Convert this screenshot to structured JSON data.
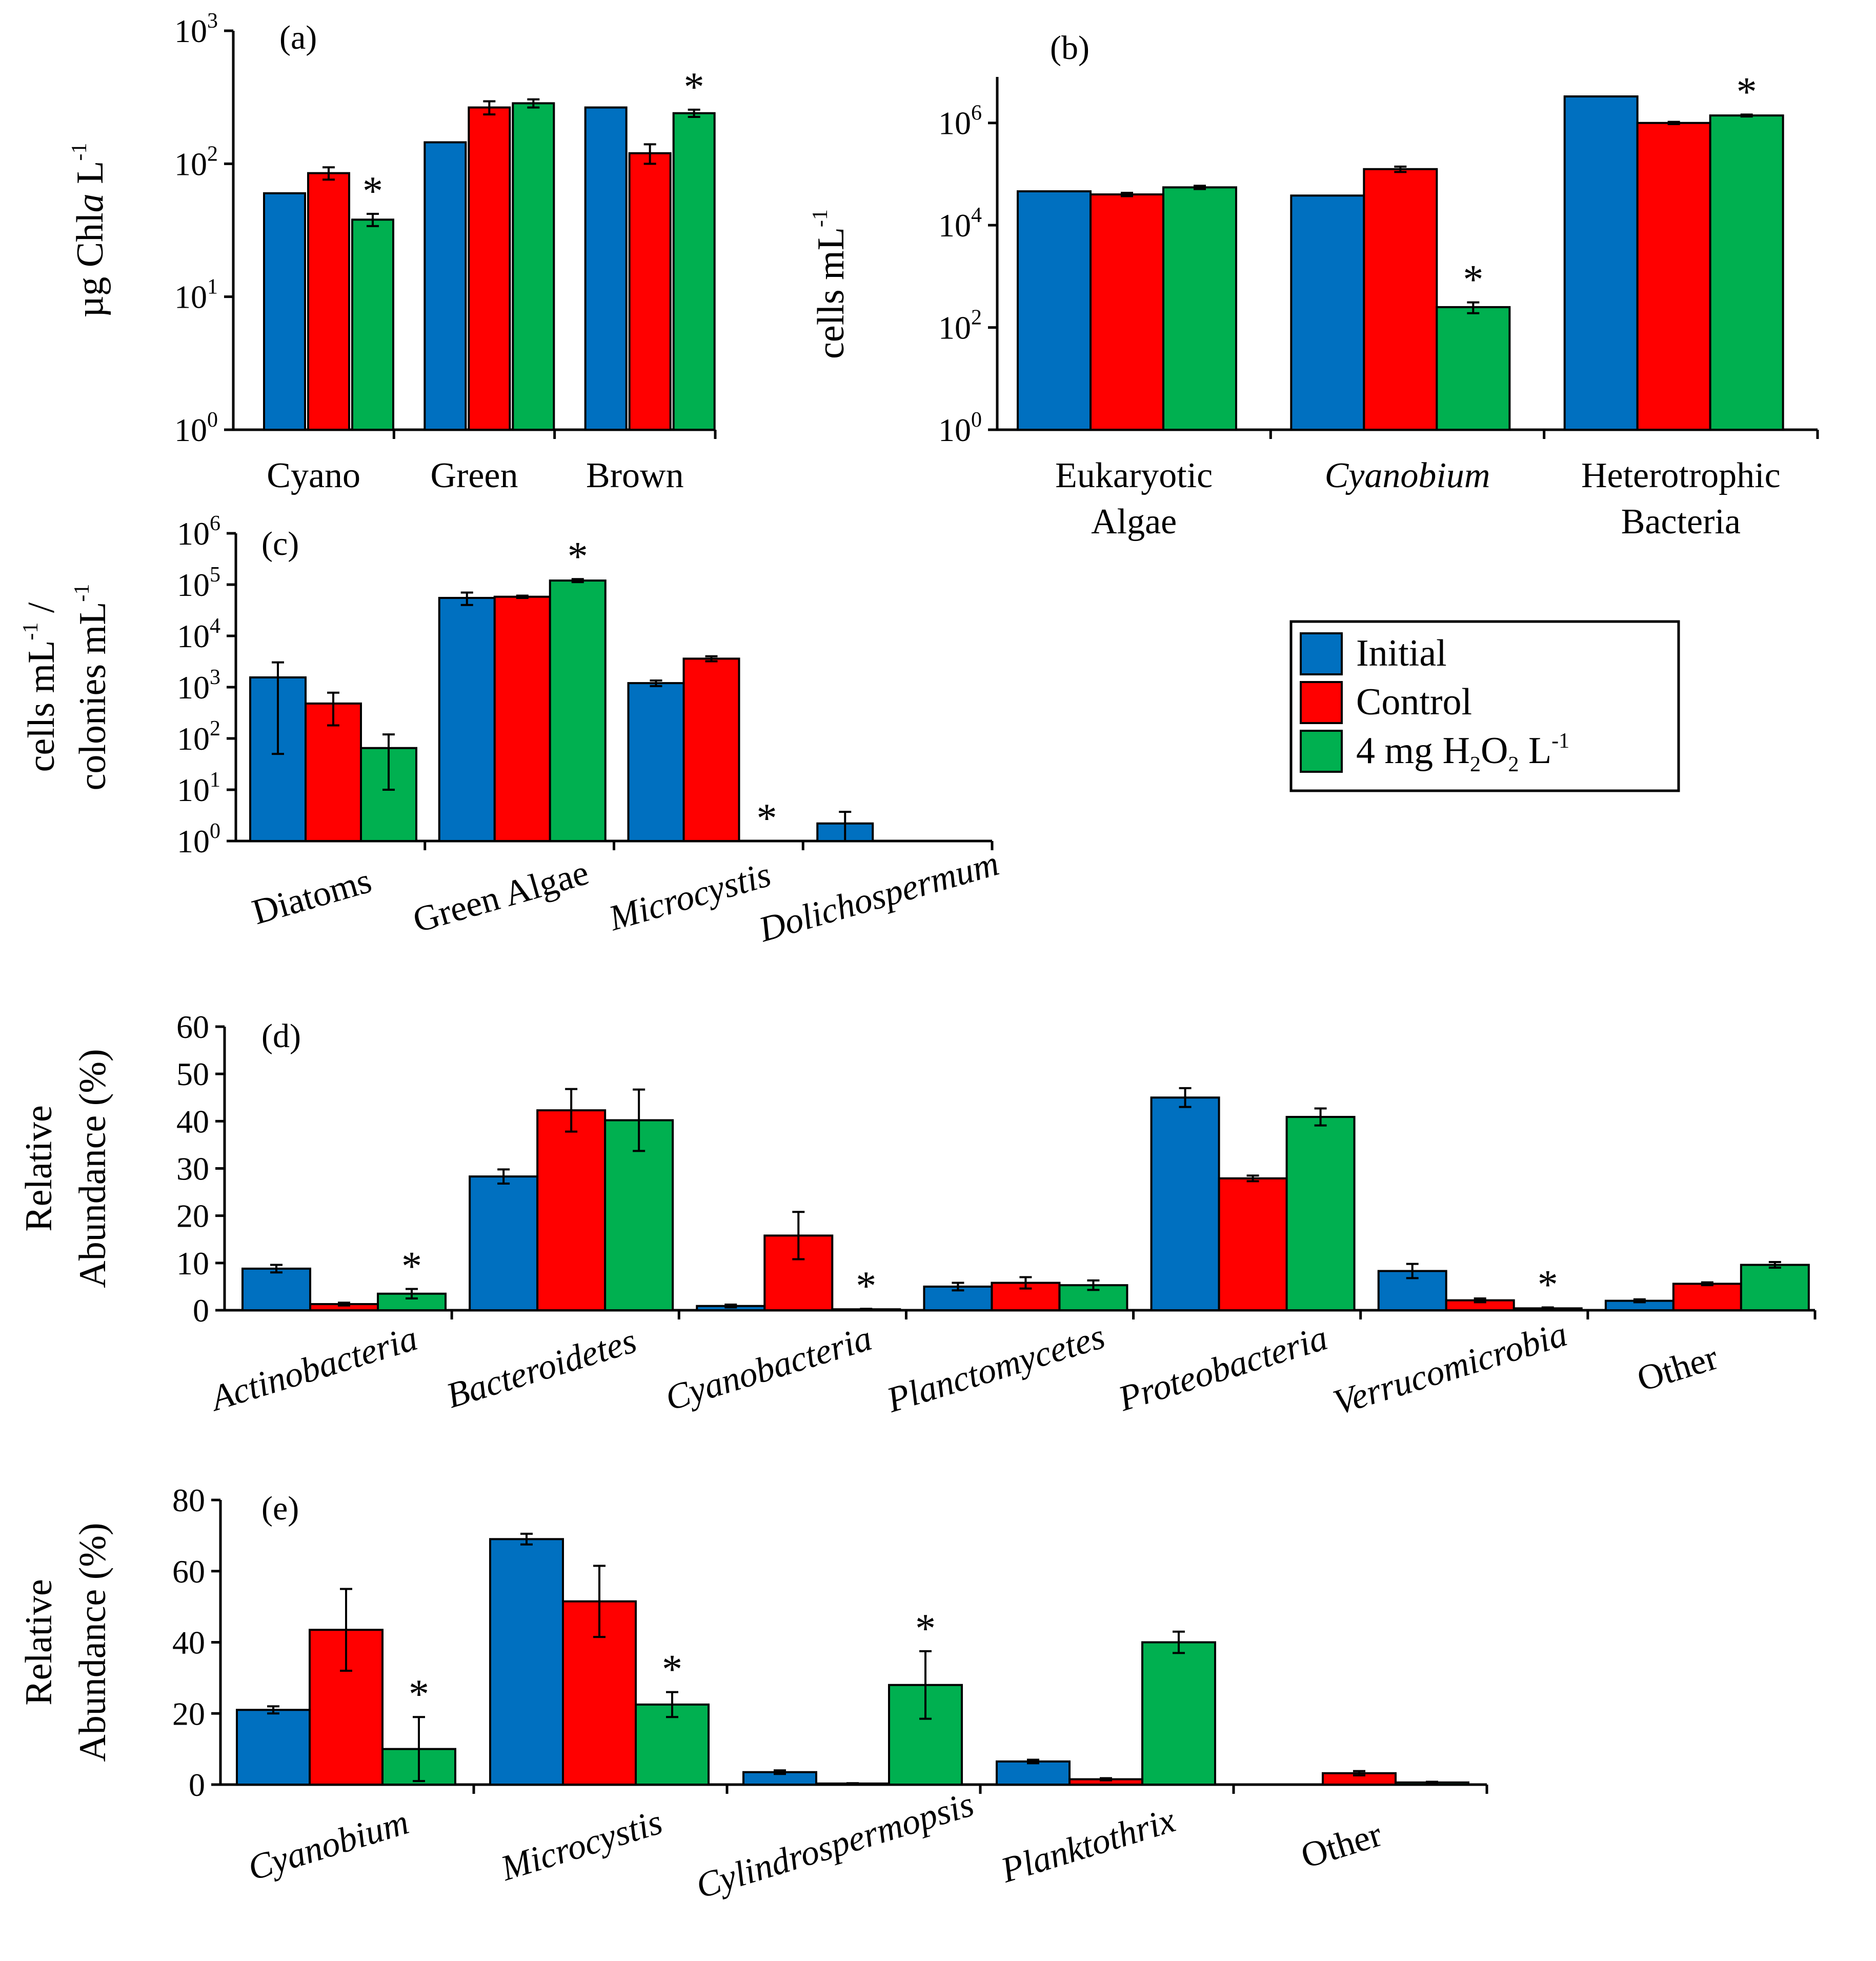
{
  "legend": {
    "items": [
      {
        "name": "Initial",
        "color": "#0070C0"
      },
      {
        "name": "Control",
        "color": "#FF0000"
      },
      {
        "name": "4 mg H2O2 L-1",
        "color": "#00B050"
      }
    ],
    "labels": {
      "initial": "Initial",
      "control": "Control",
      "h2o2_prefix": "4 mg H",
      "h2o2_sub1": "2",
      "h2o2_o": "O",
      "h2o2_sub2": "2",
      "h2o2_unit": " L",
      "h2o2_sup": "-1"
    }
  },
  "chart_data": [
    {
      "id": "a",
      "panel_label": "(a)",
      "type": "bar",
      "yscale": "log",
      "ylim_log10": [
        0,
        3
      ],
      "ylabel": {
        "prefix": "µg Chl",
        "italic": "a",
        "unit": " L",
        "sup": "-1"
      },
      "tick_labels": [
        {
          "base": "10",
          "exp": "0"
        },
        {
          "base": "10",
          "exp": "1"
        },
        {
          "base": "10",
          "exp": "2"
        },
        {
          "base": "10",
          "exp": "3"
        }
      ],
      "categories": [
        {
          "text": "Cyano"
        },
        {
          "text": "Green"
        },
        {
          "text": "Brown"
        }
      ],
      "series": [
        {
          "name": "Initial",
          "values": [
            60,
            145,
            265
          ],
          "errors": [
            0,
            0,
            0
          ]
        },
        {
          "name": "Control",
          "values": [
            85,
            265,
            120
          ],
          "errors": [
            9,
            30,
            20
          ]
        },
        {
          "name": "4 mg H2O2 L-1",
          "values": [
            38,
            285,
            240
          ],
          "errors": [
            4,
            20,
            15
          ]
        }
      ],
      "significance": [
        {
          "category": 0,
          "series": 2,
          "text": "*"
        },
        {
          "category": 2,
          "series": 2,
          "text": "*"
        }
      ]
    },
    {
      "id": "b",
      "panel_label": "(b)",
      "type": "bar",
      "yscale": "log",
      "ylim_log10": [
        0,
        6.9
      ],
      "ylabel": {
        "prefix": "cells mL",
        "italic": "",
        "unit": "",
        "sup": "-1"
      },
      "tick_labels": [
        {
          "base": "10",
          "exp": "0"
        },
        {
          "base": "10",
          "exp": "2"
        },
        {
          "base": "10",
          "exp": "4"
        },
        {
          "base": "10",
          "exp": "6"
        }
      ],
      "categories": [
        {
          "lines": [
            "Eukaryotic",
            "Algae"
          ],
          "italic": false
        },
        {
          "lines": [
            "Cyanobium"
          ],
          "italic": true
        },
        {
          "lines": [
            "Heterotrophic",
            "Bacteria"
          ],
          "italic": false
        }
      ],
      "series": [
        {
          "name": "Initial",
          "values": [
            46000,
            38000,
            3300000
          ],
          "errors": [
            0,
            0,
            0
          ]
        },
        {
          "name": "Control",
          "values": [
            40000,
            125000,
            1000000
          ],
          "errors": [
            3000,
            15000,
            50000
          ]
        },
        {
          "name": "4 mg H2O2 L-1",
          "values": [
            55000,
            250,
            1400000
          ],
          "errors": [
            4000,
            60,
            60000
          ]
        }
      ],
      "significance": [
        {
          "category": 1,
          "series": 2,
          "text": "*"
        },
        {
          "category": 2,
          "series": 2,
          "text": "*"
        }
      ]
    },
    {
      "id": "c",
      "panel_label": "(c)",
      "type": "bar",
      "yscale": "log",
      "ylim_log10": [
        0,
        6
      ],
      "ylabel": {
        "line1": "cells mL",
        "line1_sup": "-1",
        "line1_suffix": " /",
        "line2": "colonies mL",
        "line2_sup": "-1"
      },
      "tick_labels": [
        {
          "base": "10",
          "exp": "0"
        },
        {
          "base": "10",
          "exp": "1"
        },
        {
          "base": "10",
          "exp": "2"
        },
        {
          "base": "10",
          "exp": "3"
        },
        {
          "base": "10",
          "exp": "4"
        },
        {
          "base": "10",
          "exp": "5"
        },
        {
          "base": "10",
          "exp": "6"
        }
      ],
      "categories": [
        {
          "text": "Diatoms",
          "italic": false
        },
        {
          "text": "Green Algae",
          "italic": false
        },
        {
          "text": "Microcystis",
          "italic": true
        },
        {
          "text": "Dolichospermum",
          "italic": true
        }
      ],
      "series": [
        {
          "name": "Initial",
          "values": [
            1550,
            55000,
            1200,
            2.2
          ],
          "errors": [
            1500,
            15000,
            150,
            1.5
          ]
        },
        {
          "name": "Control",
          "values": [
            480,
            58000,
            3600,
            null
          ],
          "errors": [
            300,
            3000,
            400,
            0
          ]
        },
        {
          "name": "4 mg H2O2 L-1",
          "values": [
            65,
            120000,
            null,
            null
          ],
          "errors": [
            55,
            8000,
            0,
            0
          ]
        }
      ],
      "significance": [
        {
          "category": 1,
          "series": 2,
          "text": "*"
        },
        {
          "category": 2,
          "series": 2,
          "text": "*"
        }
      ]
    },
    {
      "id": "d",
      "panel_label": "(d)",
      "type": "bar",
      "yscale": "linear",
      "ylim": [
        0,
        60
      ],
      "yticks": [
        0,
        10,
        20,
        30,
        40,
        50,
        60
      ],
      "ylabel": {
        "line1": "Relative",
        "line2": "Abundance  (%)"
      },
      "categories": [
        {
          "text": "Actinobacteria",
          "italic": true
        },
        {
          "text": "Bacteroidetes",
          "italic": true
        },
        {
          "text": "Cyanobacteria",
          "italic": true
        },
        {
          "text": "Planctomycetes",
          "italic": true
        },
        {
          "text": "Proteobacteria",
          "italic": true
        },
        {
          "text": "Verrucomicrobia",
          "italic": true
        },
        {
          "text": "Other",
          "italic": false
        }
      ],
      "series": [
        {
          "name": "Initial",
          "values": [
            8.8,
            28.3,
            0.9,
            5.0,
            45.0,
            8.3,
            2.0
          ],
          "errors": [
            0.8,
            1.5,
            0.3,
            0.8,
            2.0,
            1.5,
            0.3
          ]
        },
        {
          "name": "Control",
          "values": [
            1.3,
            42.3,
            15.8,
            5.8,
            27.9,
            2.1,
            5.6
          ],
          "errors": [
            0.3,
            4.5,
            5.0,
            1.2,
            0.6,
            0.4,
            0.3
          ]
        },
        {
          "name": "4 mg H2O2 L-1",
          "values": [
            3.5,
            40.2,
            0.2,
            5.3,
            40.9,
            0.4,
            9.6
          ],
          "errors": [
            1.0,
            6.5,
            0.1,
            1.0,
            1.8,
            0.2,
            0.6
          ]
        }
      ],
      "significance": [
        {
          "category": 0,
          "series": 2,
          "text": "*"
        },
        {
          "category": 2,
          "series": 2,
          "text": "*"
        },
        {
          "category": 5,
          "series": 2,
          "text": "*"
        }
      ]
    },
    {
      "id": "e",
      "panel_label": "(e)",
      "type": "bar",
      "yscale": "linear",
      "ylim": [
        0,
        80
      ],
      "yticks": [
        0,
        20,
        40,
        60,
        80
      ],
      "ylabel": {
        "line1": "Relative",
        "line2": "Abundance  (%)"
      },
      "categories": [
        {
          "text": "Cyanobium",
          "italic": true
        },
        {
          "text": "Microcystis",
          "italic": true
        },
        {
          "text": "Cylindrospermopsis",
          "italic": true
        },
        {
          "text": "Planktothrix",
          "italic": true
        },
        {
          "text": "Other",
          "italic": false
        }
      ],
      "series": [
        {
          "name": "Initial",
          "values": [
            21,
            69,
            3.5,
            6.5,
            0
          ],
          "errors": [
            1.0,
            1.5,
            0.5,
            0.5,
            0
          ]
        },
        {
          "name": "Control",
          "values": [
            43.5,
            51.5,
            0.3,
            1.5,
            3.2
          ],
          "errors": [
            11.5,
            10.0,
            0.1,
            0.3,
            0.6
          ]
        },
        {
          "name": "4 mg H2O2 L-1",
          "values": [
            10,
            22.5,
            28,
            40,
            0.6
          ],
          "errors": [
            9.0,
            3.5,
            9.5,
            3.0,
            0.2
          ]
        }
      ],
      "significance": [
        {
          "category": 0,
          "series": 2,
          "text": "*"
        },
        {
          "category": 1,
          "series": 2,
          "text": "*"
        },
        {
          "category": 2,
          "series": 2,
          "text": "*"
        }
      ]
    }
  ]
}
